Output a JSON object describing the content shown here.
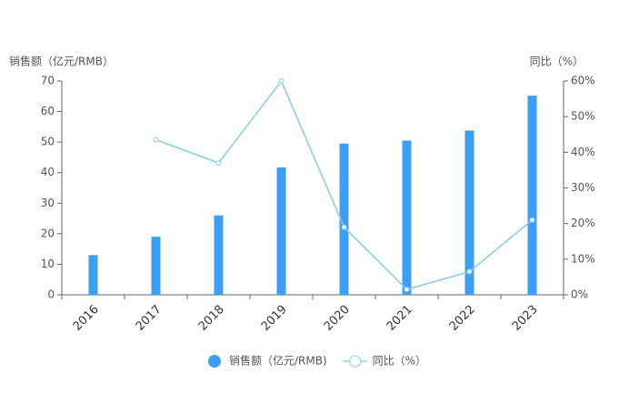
{
  "chart_data": {
    "type": "bar",
    "y_axis_label": "销售额（亿元/RMB）",
    "y2_axis_label": "同比（%）",
    "categories": [
      "2016",
      "2017",
      "2018",
      "2019",
      "2020",
      "2021",
      "2022",
      "2023"
    ],
    "series": [
      {
        "name": "销售额（亿元/RMB)",
        "type": "bar",
        "color": "#3a9ff5",
        "values": [
          13,
          19,
          26,
          41.7,
          49.5,
          50.5,
          53.8,
          65.2
        ]
      },
      {
        "name": "同比（%）",
        "type": "line",
        "axis": "y2",
        "color": "#87cde6",
        "values": [
          null,
          43.5,
          37,
          60,
          19,
          1.5,
          6.5,
          21
        ]
      }
    ],
    "ylim": [
      0,
      70
    ],
    "yticks": [
      0,
      10,
      20,
      30,
      40,
      50,
      60,
      70
    ],
    "y2lim": [
      0,
      60
    ],
    "y2ticks": [
      {
        "value": 0,
        "label": "0%"
      },
      {
        "value": 10,
        "label": "10%"
      },
      {
        "value": 20,
        "label": "20%"
      },
      {
        "value": 30,
        "label": "30%"
      },
      {
        "value": 40,
        "label": "40%"
      },
      {
        "value": 50,
        "label": "50%"
      },
      {
        "value": 60,
        "label": "60%"
      }
    ],
    "grid": false,
    "legend": "bottom"
  }
}
